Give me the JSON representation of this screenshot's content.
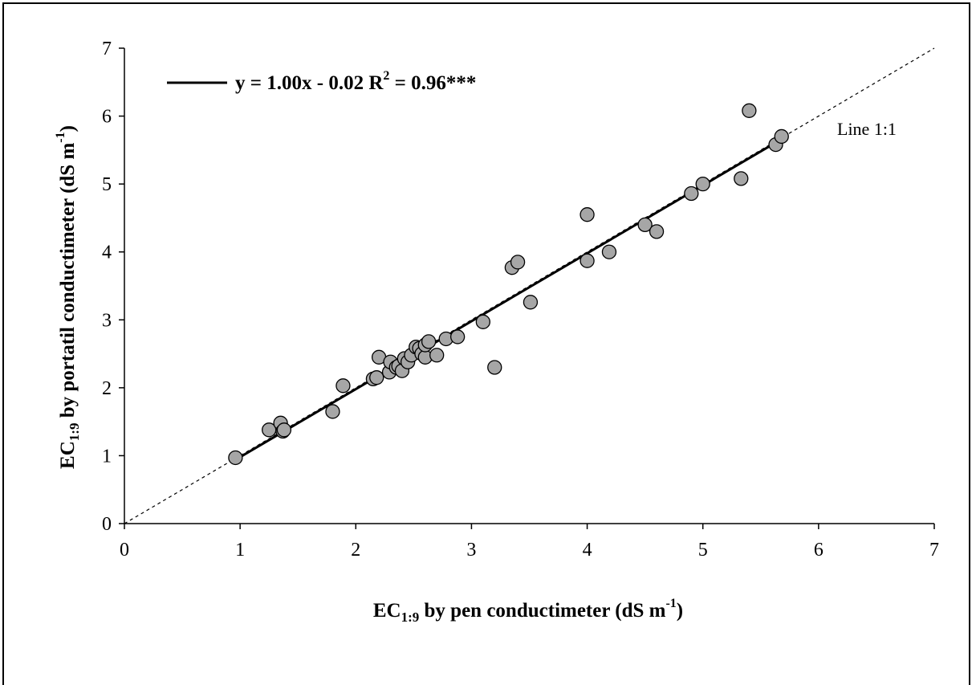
{
  "chart_data": {
    "type": "scatter",
    "xlabel": {
      "pre": "EC",
      "sub": "1:9",
      "post": " by pen conductimeter (dS m",
      "sup": "-1",
      "end": ")"
    },
    "ylabel": {
      "pre": "EC",
      "sub": "1:9",
      "post": " by portatil conductimeter (dS m",
      "sup": "-1",
      "end": ")"
    },
    "xlim": [
      0,
      7
    ],
    "ylim": [
      0,
      7
    ],
    "xticks": [
      "0",
      "1",
      "2",
      "3",
      "4",
      "5",
      "6",
      "7"
    ],
    "yticks": [
      "0",
      "1",
      "2",
      "3",
      "4",
      "5",
      "6",
      "7"
    ],
    "grid": false,
    "legend": {
      "placement": "top-left",
      "label_pre": "y = 1.00x - 0.02  R",
      "label_sup": "2",
      "label_post": " = 0.96***"
    },
    "regression": {
      "slope": 1.0,
      "intercept": -0.02,
      "x_range": [
        0.97,
        5.68
      ]
    },
    "reference_line": {
      "label": "Line 1:1",
      "slope": 1,
      "intercept": 0
    },
    "marker_color": "#a6a6a6",
    "points": [
      [
        0.96,
        0.97
      ],
      [
        1.25,
        1.38
      ],
      [
        1.35,
        1.48
      ],
      [
        1.37,
        1.36
      ],
      [
        1.38,
        1.38
      ],
      [
        1.8,
        1.65
      ],
      [
        1.89,
        2.03
      ],
      [
        2.15,
        2.13
      ],
      [
        2.18,
        2.15
      ],
      [
        2.2,
        2.45
      ],
      [
        2.29,
        2.23
      ],
      [
        2.3,
        2.38
      ],
      [
        2.35,
        2.3
      ],
      [
        2.37,
        2.32
      ],
      [
        2.4,
        2.25
      ],
      [
        2.42,
        2.43
      ],
      [
        2.45,
        2.38
      ],
      [
        2.48,
        2.48
      ],
      [
        2.52,
        2.6
      ],
      [
        2.55,
        2.58
      ],
      [
        2.57,
        2.5
      ],
      [
        2.6,
        2.45
      ],
      [
        2.6,
        2.63
      ],
      [
        2.63,
        2.68
      ],
      [
        2.7,
        2.48
      ],
      [
        2.78,
        2.72
      ],
      [
        2.88,
        2.75
      ],
      [
        3.1,
        2.97
      ],
      [
        3.2,
        2.3
      ],
      [
        3.35,
        3.77
      ],
      [
        3.4,
        3.85
      ],
      [
        3.51,
        3.26
      ],
      [
        4.0,
        3.87
      ],
      [
        4.0,
        4.55
      ],
      [
        4.19,
        4.0
      ],
      [
        4.5,
        4.4
      ],
      [
        4.6,
        4.3
      ],
      [
        4.9,
        4.86
      ],
      [
        5.0,
        5.0
      ],
      [
        5.33,
        5.08
      ],
      [
        5.4,
        6.08
      ],
      [
        5.63,
        5.58
      ],
      [
        5.68,
        5.7
      ]
    ]
  }
}
